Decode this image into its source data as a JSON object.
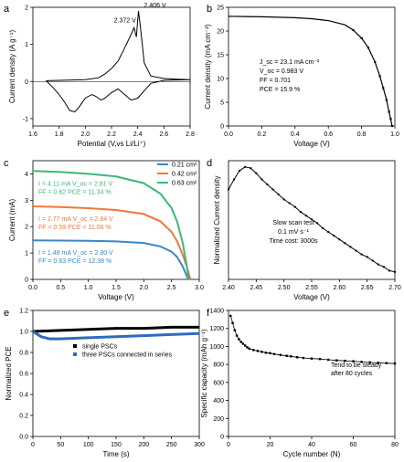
{
  "panels": {
    "a": {
      "letter": "a"
    },
    "b": {
      "letter": "b"
    },
    "c": {
      "letter": "c"
    },
    "d": {
      "letter": "d"
    },
    "e": {
      "letter": "e"
    },
    "f": {
      "letter": "f"
    }
  },
  "chart_data": [
    {
      "id": "a",
      "type": "line",
      "xlabel": "Potential (V,vs Li/Li⁺)",
      "ylabel": "Current density (A g⁻¹)",
      "xlim": [
        1.6,
        2.8
      ],
      "ylim": [
        -1.2,
        2.0
      ],
      "xticks": [
        "1.6",
        "1.8",
        "2.0",
        "2.2",
        "2.4",
        "2.6",
        "2.8"
      ],
      "xtick_values": [
        1.6,
        1.8,
        2.0,
        2.2,
        2.4,
        2.6,
        2.8
      ],
      "yticks": [
        "-1",
        "0",
        "1",
        "2"
      ],
      "ytick_values": [
        -1,
        0,
        1,
        2
      ],
      "annotations": [
        {
          "text": "2.372 V",
          "x": 2.372,
          "y": 1.45
        },
        {
          "text": "2.406 V",
          "x": 2.406,
          "y": 1.9
        }
      ],
      "series": [
        {
          "color": "#000000",
          "points": [
            [
              1.7,
              0.02
            ],
            [
              1.8,
              0.03
            ],
            [
              1.9,
              0.04
            ],
            [
              2.0,
              0.05
            ],
            [
              2.1,
              0.1
            ],
            [
              2.15,
              0.2
            ],
            [
              2.2,
              0.35
            ],
            [
              2.25,
              0.55
            ],
            [
              2.3,
              0.9
            ],
            [
              2.34,
              1.2
            ],
            [
              2.372,
              1.45
            ],
            [
              2.39,
              1.2
            ],
            [
              2.406,
              1.9
            ],
            [
              2.42,
              1.5
            ],
            [
              2.45,
              0.5
            ],
            [
              2.5,
              0.15
            ],
            [
              2.6,
              0.08
            ],
            [
              2.7,
              0.06
            ],
            [
              2.8,
              0.05
            ],
            [
              2.7,
              0.04
            ],
            [
              2.6,
              0.03
            ],
            [
              2.5,
              -0.05
            ],
            [
              2.45,
              -0.25
            ],
            [
              2.4,
              -0.45
            ],
            [
              2.35,
              -0.5
            ],
            [
              2.3,
              -0.35
            ],
            [
              2.25,
              -0.2
            ],
            [
              2.2,
              -0.3
            ],
            [
              2.15,
              -0.45
            ],
            [
              2.12,
              -0.5
            ],
            [
              2.08,
              -0.4
            ],
            [
              2.05,
              -0.35
            ],
            [
              2.0,
              -0.45
            ],
            [
              1.95,
              -0.7
            ],
            [
              1.92,
              -0.82
            ],
            [
              1.88,
              -0.78
            ],
            [
              1.85,
              -0.6
            ],
            [
              1.8,
              -0.35
            ],
            [
              1.75,
              -0.15
            ],
            [
              1.7,
              0.02
            ]
          ]
        }
      ]
    },
    {
      "id": "b",
      "type": "line",
      "xlabel": "Voltage (V)",
      "ylabel": "Current density (mA cm⁻²)",
      "xlim": [
        0.0,
        1.0
      ],
      "ylim": [
        0,
        25
      ],
      "xticks": [
        "0.0",
        "0.2",
        "0.4",
        "0.6",
        "0.8",
        "1.0"
      ],
      "xtick_values": [
        0,
        0.2,
        0.4,
        0.6,
        0.8,
        1.0
      ],
      "yticks": [
        "0",
        "5",
        "10",
        "15",
        "20",
        "25"
      ],
      "ytick_values": [
        0,
        5,
        10,
        15,
        20,
        25
      ],
      "annotations": [
        {
          "text": "J_sc = 23.1 mA cm⁻²"
        },
        {
          "text": "V_oc = 0.983 V"
        },
        {
          "text": "FF = 0.701"
        },
        {
          "text": "PCE = 15.9 %"
        }
      ],
      "series": [
        {
          "color": "#000000",
          "marker": "square",
          "points": [
            [
              0,
              23.1
            ],
            [
              0.1,
              23.05
            ],
            [
              0.2,
              23.0
            ],
            [
              0.3,
              22.9
            ],
            [
              0.4,
              22.8
            ],
            [
              0.5,
              22.6
            ],
            [
              0.6,
              22.2
            ],
            [
              0.7,
              21.3
            ],
            [
              0.75,
              20.2
            ],
            [
              0.8,
              18.5
            ],
            [
              0.84,
              16.5
            ],
            [
              0.88,
              13.5
            ],
            [
              0.91,
              10.5
            ],
            [
              0.93,
              8.0
            ],
            [
              0.95,
              5.5
            ],
            [
              0.965,
              3.0
            ],
            [
              0.975,
              1.5
            ],
            [
              0.983,
              0
            ]
          ]
        }
      ]
    },
    {
      "id": "c",
      "type": "line",
      "xlabel": "Voltage (V)",
      "ylabel": "Current (mA)",
      "xlim": [
        0.0,
        3.0
      ],
      "ylim": [
        0.0,
        4.5
      ],
      "xticks": [
        "0.0",
        "0.5",
        "1.0",
        "1.5",
        "2.0",
        "2.5",
        "3.0"
      ],
      "xtick_values": [
        0,
        0.5,
        1.0,
        1.5,
        2.0,
        2.5,
        3.0
      ],
      "yticks": [
        "0",
        "1",
        "2",
        "3",
        "4"
      ],
      "ytick_values": [
        0,
        1,
        2,
        3,
        4
      ],
      "legend": [
        {
          "label": "0.21 cm²",
          "color": "#3a86c8"
        },
        {
          "label": "0.42 cm²",
          "color": "#f07838"
        },
        {
          "label": "0.63 cm²",
          "color": "#3cb878"
        }
      ],
      "annotations": [
        {
          "color": "#3cb878",
          "line1": "I = 4.11 mA   V_oc = 2.81 V",
          "line2": "FF = 0.62    PCE = 11.34 %"
        },
        {
          "color": "#f07838",
          "line1": "I = 2.77 mA   V_oc = 2.84 V",
          "line2": "FF = 0.59    PCE = 11.06 %"
        },
        {
          "color": "#3a86c8",
          "line1": "I = 1.48 mA   V_oc = 2.80 V",
          "line2": "FF = 0.63    PCE = 12.38 %"
        }
      ],
      "series": [
        {
          "name": "0.21 cm²",
          "color": "#3a86c8",
          "points": [
            [
              0,
              1.48
            ],
            [
              0.5,
              1.47
            ],
            [
              1.0,
              1.46
            ],
            [
              1.5,
              1.44
            ],
            [
              2.0,
              1.38
            ],
            [
              2.3,
              1.25
            ],
            [
              2.5,
              1.05
            ],
            [
              2.6,
              0.85
            ],
            [
              2.7,
              0.5
            ],
            [
              2.75,
              0.25
            ],
            [
              2.8,
              0
            ]
          ]
        },
        {
          "name": "0.42 cm²",
          "color": "#f07838",
          "points": [
            [
              0,
              2.77
            ],
            [
              0.5,
              2.74
            ],
            [
              1.0,
              2.7
            ],
            [
              1.5,
              2.63
            ],
            [
              2.0,
              2.48
            ],
            [
              2.3,
              2.2
            ],
            [
              2.5,
              1.8
            ],
            [
              2.6,
              1.45
            ],
            [
              2.7,
              0.95
            ],
            [
              2.78,
              0.45
            ],
            [
              2.84,
              0
            ]
          ]
        },
        {
          "name": "0.63 cm²",
          "color": "#3cb878",
          "points": [
            [
              0,
              4.11
            ],
            [
              0.5,
              4.07
            ],
            [
              1.0,
              4.0
            ],
            [
              1.5,
              3.9
            ],
            [
              2.0,
              3.65
            ],
            [
              2.3,
              3.25
            ],
            [
              2.5,
              2.7
            ],
            [
              2.6,
              2.2
            ],
            [
              2.7,
              1.4
            ],
            [
              2.76,
              0.7
            ],
            [
              2.81,
              0
            ]
          ]
        }
      ]
    },
    {
      "id": "d",
      "type": "line",
      "xlabel": "Voltage (V)",
      "ylabel": "Normalized Current density",
      "xlim": [
        2.4,
        2.7
      ],
      "ylim": [
        0.1,
        1.05
      ],
      "xticks": [
        "2.40",
        "2.45",
        "2.50",
        "2.55",
        "2.60",
        "2.65",
        "2.70"
      ],
      "xtick_values": [
        2.4,
        2.45,
        2.5,
        2.55,
        2.6,
        2.65,
        2.7
      ],
      "annotations": [
        {
          "text": "Slow scan test"
        },
        {
          "text": "0.1 mV s⁻¹"
        },
        {
          "text": "Time cost: 3000s"
        }
      ],
      "series": [
        {
          "color": "#000000",
          "marker": "square",
          "points": [
            [
              2.4,
              0.82
            ],
            [
              2.41,
              0.9
            ],
            [
              2.42,
              0.97
            ],
            [
              2.43,
              1.0
            ],
            [
              2.44,
              0.99
            ],
            [
              2.45,
              0.95
            ],
            [
              2.46,
              0.9
            ],
            [
              2.47,
              0.86
            ],
            [
              2.48,
              0.82
            ],
            [
              2.49,
              0.78
            ],
            [
              2.5,
              0.74
            ],
            [
              2.51,
              0.71
            ],
            [
              2.52,
              0.68
            ],
            [
              2.53,
              0.64
            ],
            [
              2.54,
              0.61
            ],
            [
              2.55,
              0.58
            ],
            [
              2.56,
              0.55
            ],
            [
              2.57,
              0.51
            ],
            [
              2.58,
              0.48
            ],
            [
              2.59,
              0.45
            ],
            [
              2.6,
              0.42
            ],
            [
              2.61,
              0.39
            ],
            [
              2.62,
              0.36
            ],
            [
              2.63,
              0.33
            ],
            [
              2.64,
              0.3
            ],
            [
              2.65,
              0.28
            ],
            [
              2.66,
              0.25
            ],
            [
              2.67,
              0.22
            ],
            [
              2.68,
              0.2
            ],
            [
              2.69,
              0.17
            ],
            [
              2.7,
              0.16
            ]
          ]
        }
      ]
    },
    {
      "id": "e",
      "type": "scatter",
      "xlabel": "Time (s)",
      "ylabel": "Normalized PCE",
      "xlim": [
        0,
        300
      ],
      "ylim": [
        0.0,
        1.2
      ],
      "xticks": [
        "0",
        "50",
        "100",
        "150",
        "200",
        "250",
        "300"
      ],
      "xtick_values": [
        0,
        50,
        100,
        150,
        200,
        250,
        300
      ],
      "yticks": [
        "0.0",
        "0.2",
        "0.4",
        "0.6",
        "0.8",
        "1.0",
        "1.2"
      ],
      "ytick_values": [
        0,
        0.2,
        0.4,
        0.6,
        0.8,
        1.0,
        1.2
      ],
      "legend": [
        {
          "label": "single PSCs",
          "color": "#000000"
        },
        {
          "label": "three PSCs connected in series",
          "color": "#2f6bbf"
        }
      ],
      "series": [
        {
          "name": "single PSCs",
          "color": "#000000",
          "points": [
            [
              0,
              1.0
            ],
            [
              50,
              1.01
            ],
            [
              100,
              1.02
            ],
            [
              150,
              1.03
            ],
            [
              200,
              1.03
            ],
            [
              250,
              1.04
            ],
            [
              300,
              1.04
            ]
          ]
        },
        {
          "name": "three PSCs connected in series",
          "color": "#2f6bbf",
          "points": [
            [
              0,
              1.0
            ],
            [
              15,
              0.95
            ],
            [
              30,
              0.93
            ],
            [
              50,
              0.93
            ],
            [
              100,
              0.94
            ],
            [
              150,
              0.95
            ],
            [
              200,
              0.96
            ],
            [
              250,
              0.97
            ],
            [
              300,
              0.98
            ]
          ]
        }
      ]
    },
    {
      "id": "f",
      "type": "scatter",
      "xlabel": "Cycle number (N)",
      "ylabel": "Specific capacity (mAh g⁻¹)",
      "xlim": [
        0,
        80
      ],
      "ylim": [
        0,
        1400
      ],
      "xticks": [
        "0",
        "20",
        "40",
        "60",
        "80"
      ],
      "xtick_values": [
        0,
        20,
        40,
        60,
        80
      ],
      "yticks": [
        "0",
        "200",
        "400",
        "600",
        "800",
        "1000",
        "1200",
        "1400"
      ],
      "ytick_values": [
        0,
        200,
        400,
        600,
        800,
        1000,
        1200,
        1400
      ],
      "annotations": [
        {
          "text": "Tend to be steady"
        },
        {
          "text": "after 80 cycles"
        }
      ],
      "series": [
        {
          "color": "#000000",
          "marker": "square",
          "points": [
            [
              1,
              1340
            ],
            [
              2,
              1260
            ],
            [
              3,
              1180
            ],
            [
              4,
              1120
            ],
            [
              5,
              1080
            ],
            [
              6,
              1050
            ],
            [
              7,
              1030
            ],
            [
              8,
              1010
            ],
            [
              9,
              990
            ],
            [
              10,
              975
            ],
            [
              12,
              960
            ],
            [
              14,
              950
            ],
            [
              16,
              940
            ],
            [
              18,
              930
            ],
            [
              20,
              925
            ],
            [
              22,
              915
            ],
            [
              25,
              905
            ],
            [
              28,
              895
            ],
            [
              30,
              890
            ],
            [
              33,
              880
            ],
            [
              36,
              872
            ],
            [
              40,
              865
            ],
            [
              44,
              860
            ],
            [
              48,
              852
            ],
            [
              52,
              845
            ],
            [
              56,
              840
            ],
            [
              60,
              835
            ],
            [
              64,
              828
            ],
            [
              68,
              822
            ],
            [
              72,
              818
            ],
            [
              76,
              814
            ],
            [
              80,
              810
            ]
          ]
        }
      ]
    }
  ]
}
